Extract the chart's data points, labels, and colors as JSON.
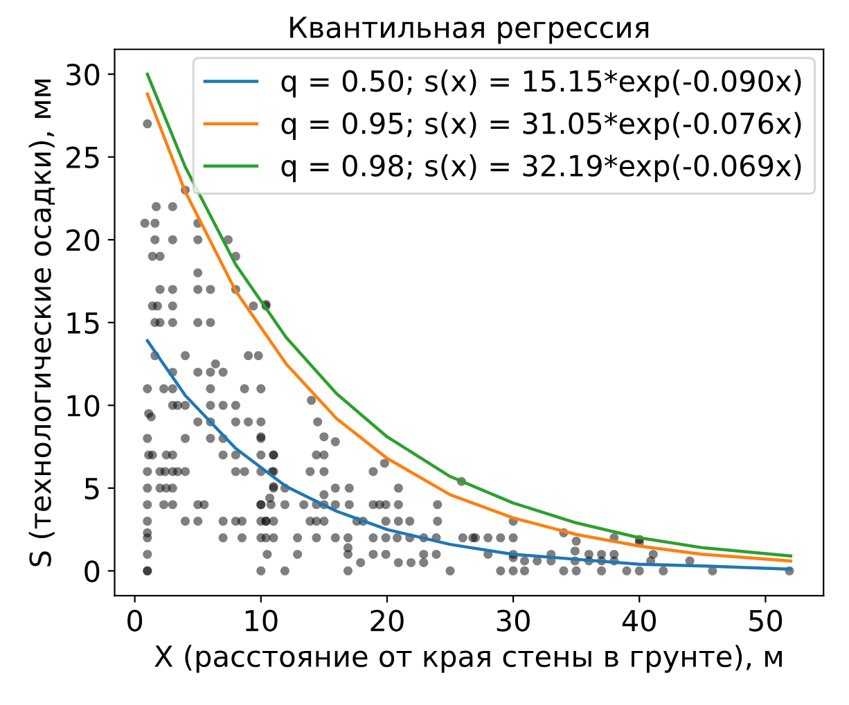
{
  "chart_data": {
    "type": "scatter",
    "title": "Квантильная регрессия",
    "xlabel": "X (расстояние от края стены в грунте), м",
    "ylabel": "S (технологические осадки), мм",
    "xlim": [
      -1.6,
      54.6
    ],
    "ylim": [
      -1.5,
      31.5
    ],
    "xticks": [
      0,
      10,
      20,
      30,
      40,
      50
    ],
    "yticks": [
      0,
      5,
      10,
      15,
      20,
      25,
      30
    ],
    "grid": false,
    "legend": "top right",
    "series": [
      {
        "marker": "circle",
        "color": "#000000",
        "x": [
          1,
          1,
          10,
          1,
          10.5,
          1,
          1,
          7,
          8.5,
          10,
          10.4,
          11,
          1,
          4,
          5,
          7,
          8,
          8.5,
          10,
          10.4,
          11,
          1,
          2.3,
          3,
          5,
          5.5,
          10,
          10.8,
          1,
          2,
          2.5,
          3,
          11,
          1,
          2,
          2.4,
          3,
          3.4,
          4,
          8,
          8.7,
          10,
          11,
          1.1,
          1.4,
          2.5,
          3,
          7,
          8,
          10,
          11,
          1,
          4,
          6,
          7,
          10,
          1.1,
          1.3,
          5,
          6,
          8,
          9,
          10,
          3,
          3.4,
          4,
          6,
          7,
          8,
          1,
          2.3,
          3,
          6,
          8.7,
          10,
          3,
          5,
          6,
          7,
          6.4,
          1.6,
          4,
          9,
          9.8,
          1.6,
          2,
          3,
          5,
          6,
          1.4,
          1.8,
          3,
          9.4,
          10.4,
          2,
          3,
          5,
          6,
          8,
          5,
          1.4,
          2,
          8,
          1.6,
          3,
          5,
          7.4,
          0.8,
          1.6,
          5,
          1.7,
          3,
          4,
          1,
          10.4,
          14,
          14.5,
          15,
          15.9,
          10,
          11,
          14.4,
          15,
          19.8,
          10.9,
          13.9,
          15,
          18.9,
          11,
          11.9,
          10.7,
          15,
          15.9,
          17,
          20.9,
          10,
          11.9,
          13.4,
          14.4,
          15,
          15.9,
          17,
          18.9,
          19.4,
          19.9,
          20.9,
          24,
          10.4,
          13.9,
          14.4,
          15,
          17.6,
          18.1,
          19.9,
          20.9,
          21.8,
          24,
          12.9,
          14.4,
          15.9,
          16.9,
          18.9,
          19.9,
          20.8,
          21.8,
          22.9,
          23.9,
          26,
          26.8,
          12.9,
          16.9,
          18.9,
          19.9,
          22.9,
          23.9,
          16.9,
          17.9,
          20.9,
          21.9,
          22.9,
          11.9,
          16.9,
          25,
          25.9,
          30,
          27,
          28,
          29,
          30,
          38,
          34,
          35,
          40,
          40,
          34.9,
          28,
          30,
          33,
          36,
          37,
          38,
          41.1,
          30,
          30.9,
          31.9,
          33,
          34.9,
          36,
          37,
          38,
          40.9,
          44,
          29,
          30,
          30.9,
          34,
          35,
          37,
          39,
          40,
          41.9,
          45.8,
          51.9
        ],
        "values": [
          0,
          0,
          0,
          1,
          1,
          2.3,
          2,
          2,
          2,
          2,
          2,
          2,
          3,
          3,
          3,
          3,
          3,
          3,
          3,
          3,
          3,
          4,
          4,
          4,
          4,
          4,
          4,
          4,
          5,
          5,
          5,
          5,
          5,
          6,
          6,
          6,
          6,
          6,
          6,
          6,
          6,
          6,
          6,
          7,
          7,
          7,
          7,
          7,
          7,
          7,
          7,
          8,
          8,
          8,
          8,
          8,
          9.5,
          9.3,
          9,
          9,
          9,
          9,
          9,
          10,
          10,
          10,
          10,
          10,
          10,
          11,
          11,
          11,
          11,
          11,
          11,
          12,
          12,
          12,
          12,
          12.5,
          13,
          13,
          13,
          13,
          15,
          15,
          15,
          15,
          15,
          16,
          16,
          16,
          16,
          16,
          17,
          17,
          17,
          17,
          17,
          18,
          19,
          19,
          19,
          20,
          20,
          20,
          20,
          21,
          21,
          21,
          22,
          22,
          23,
          27,
          16.1,
          10.3,
          9,
          8.1,
          7.8,
          8.1,
          7,
          7,
          7,
          6.5,
          6,
          6,
          6,
          6,
          5.1,
          5,
          4.4,
          4.6,
          5,
          5,
          5,
          4,
          4,
          4,
          4,
          4,
          4,
          4,
          4,
          4,
          4,
          4,
          4,
          3,
          3,
          3,
          3,
          3,
          3,
          3,
          3,
          3,
          3,
          2,
          2,
          2,
          2,
          2,
          2,
          2,
          2,
          2,
          2,
          2,
          2,
          1,
          1,
          1,
          1,
          1,
          1,
          1.4,
          0.5,
          0.5,
          0.5,
          0.5,
          0,
          0,
          0,
          5.4,
          3,
          2,
          2,
          2,
          2,
          2,
          2.3,
          1.8,
          1.9,
          1.7,
          1.2,
          1,
          1,
          1,
          1,
          1,
          1,
          1,
          0.8,
          0.6,
          0.6,
          0.6,
          0.6,
          0.6,
          0.6,
          0.6,
          0.6,
          0.6,
          0,
          0,
          0,
          0,
          0,
          0,
          0,
          0,
          0,
          0,
          0
        ]
      },
      {
        "type": "line",
        "name": "q = 0.50; s(x) = 15.15*exp(-0.090x)",
        "color": "#1f77b4",
        "x": [
          1,
          4,
          8,
          12,
          16,
          20,
          25,
          30,
          35,
          40,
          45,
          52
        ],
        "values": [
          13.9,
          10.6,
          7.4,
          5.1,
          3.6,
          2.5,
          1.6,
          1.0,
          0.7,
          0.4,
          0.3,
          0.1
        ]
      },
      {
        "type": "line",
        "name": "q = 0.95; s(x) = 31.05*exp(-0.076x)",
        "color": "#ff7f0e",
        "x": [
          1,
          4,
          8,
          12,
          16,
          20,
          25,
          30,
          35,
          40,
          45,
          52
        ],
        "values": [
          28.8,
          22.9,
          16.9,
          12.5,
          9.2,
          6.8,
          4.6,
          3.2,
          2.2,
          1.5,
          1.0,
          0.6
        ]
      },
      {
        "type": "line",
        "name": "q = 0.98; s(x) = 32.19*exp(-0.069x)",
        "color": "#2ca02c",
        "x": [
          1,
          4,
          8,
          12,
          16,
          20,
          25,
          30,
          35,
          40,
          45,
          52
        ],
        "values": [
          30.0,
          24.4,
          18.5,
          14.1,
          10.7,
          8.1,
          5.7,
          4.1,
          2.9,
          2.0,
          1.4,
          0.9
        ]
      }
    ]
  }
}
